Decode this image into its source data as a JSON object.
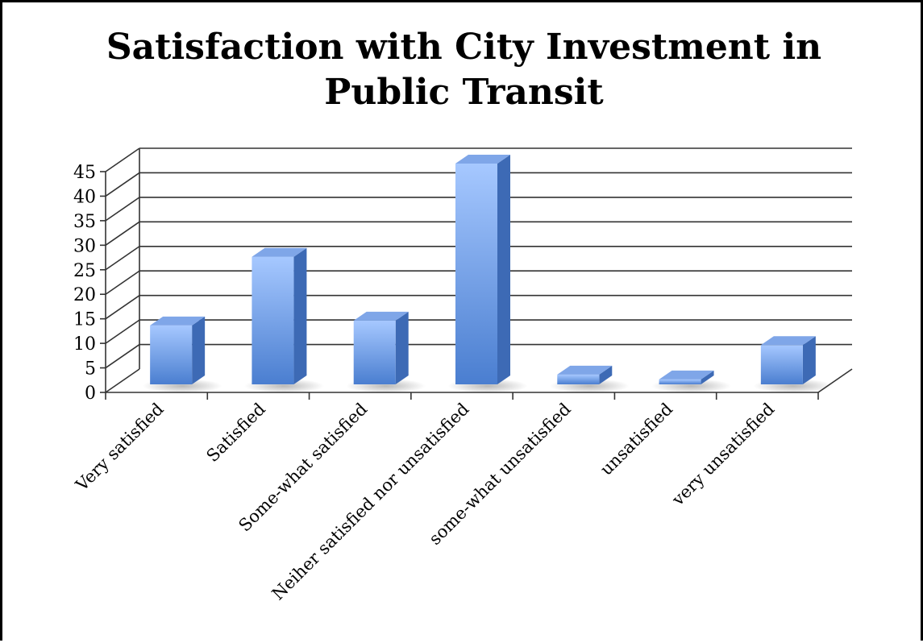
{
  "chart_data": {
    "type": "bar",
    "title_lines": [
      "Satisfaction with City Investment in",
      "Public Transit"
    ],
    "categories": [
      "Very satisfied",
      "Satisfied",
      "Some-what satisfied",
      "Neiher satisfied nor unsatisfied",
      "some-what unsatisfied",
      "unsatisfied",
      "very unsatisfied"
    ],
    "values": [
      12,
      26,
      13,
      45,
      2,
      1,
      8
    ],
    "ylim": [
      0,
      45
    ],
    "y_ticks": [
      "0",
      "5",
      "10",
      "15",
      "20",
      "25",
      "30",
      "35",
      "40",
      "45"
    ],
    "grid": true,
    "legend": "none",
    "style": "3d-column",
    "colors": {
      "bar_top": "#a6c8ff",
      "bar_bottom": "#4a7ed0",
      "bar_side": "#3d6ab5",
      "bar_cap": "#7fa6e8",
      "grid": "#333333"
    }
  }
}
